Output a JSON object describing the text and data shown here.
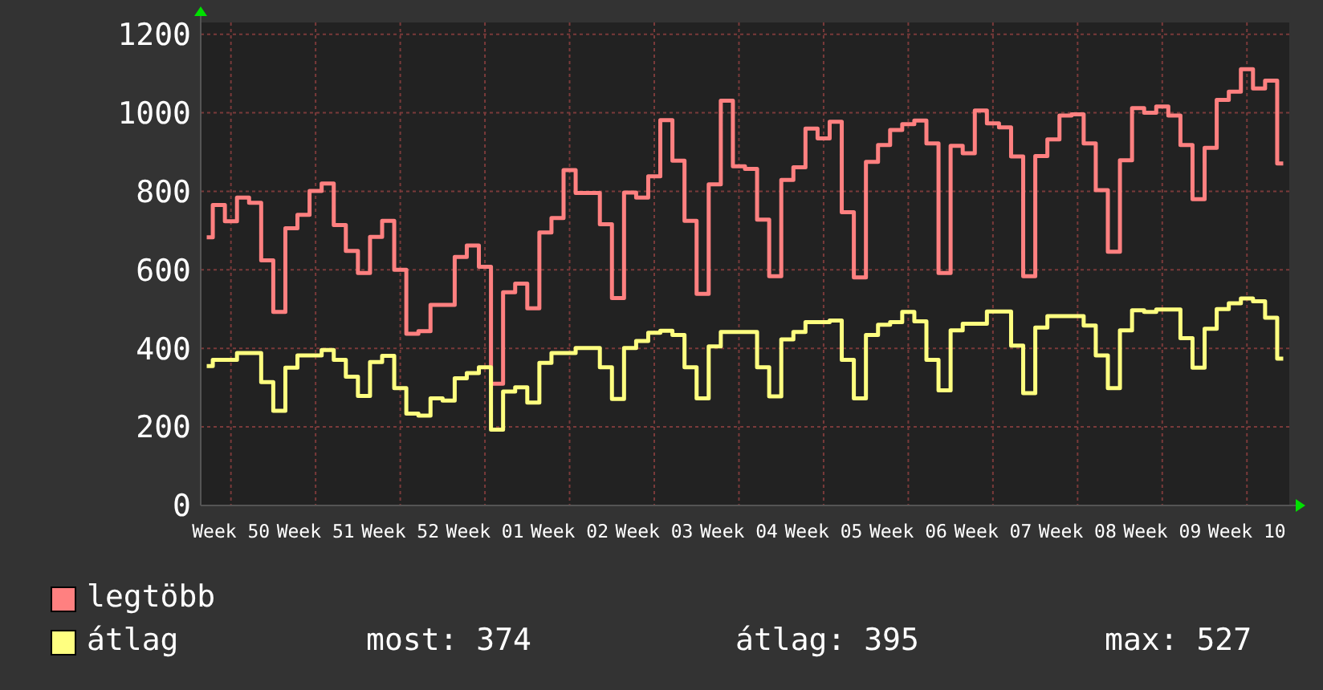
{
  "chart_data": {
    "type": "step",
    "ylim": [
      0,
      1230
    ],
    "categories": [
      null,
      null,
      "Week 50",
      null,
      null,
      null,
      null,
      null,
      null,
      "Week 51",
      null,
      null,
      null,
      null,
      null,
      null,
      "Week 52",
      null,
      null,
      null,
      null,
      null,
      null,
      "Week 01",
      null,
      null,
      null,
      null,
      null,
      null,
      "Week 02",
      null,
      null,
      null,
      null,
      null,
      null,
      "Week 03",
      null,
      null,
      null,
      null,
      null,
      null,
      "Week 04",
      null,
      null,
      null,
      null,
      null,
      null,
      "Week 05",
      null,
      null,
      null,
      null,
      null,
      null,
      "Week 06",
      null,
      null,
      null,
      null,
      null,
      null,
      "Week 07",
      null,
      null,
      null,
      null,
      null,
      null,
      "Week 08",
      null,
      null,
      null,
      null,
      null,
      null,
      "Week 09",
      null,
      null,
      null,
      null,
      null,
      null,
      "Week 10",
      null,
      null,
      null
    ],
    "yticks": [
      0,
      200,
      400,
      600,
      800,
      1000,
      1200
    ],
    "grid": true,
    "legend": "bottom",
    "line_style": "solid",
    "series": [
      {
        "name": "legtöbb",
        "color": "#ff8080",
        "values": [
          683,
          765,
          724,
          784,
          771,
          624,
          493,
          706,
          740,
          801,
          820,
          714,
          648,
          592,
          684,
          725,
          600,
          437,
          444,
          511,
          511,
          633,
          662,
          608,
          310,
          543,
          565,
          502,
          695,
          732,
          854,
          796,
          796,
          716,
          528,
          797,
          784,
          838,
          981,
          878,
          725,
          539,
          818,
          1031,
          864,
          857,
          728,
          584,
          829,
          861,
          960,
          935,
          977,
          747,
          581,
          875,
          918,
          956,
          971,
          980,
          922,
          592,
          916,
          897,
          1006,
          973,
          963,
          889,
          584,
          890,
          932,
          993,
          996,
          922,
          803,
          646,
          879,
          1012,
          1000,
          1016,
          993,
          918,
          780,
          911,
          1033,
          1054,
          1111,
          1062,
          1082,
          871
        ]
      },
      {
        "name": "átlag",
        "color": "#ffff80",
        "values": [
          355,
          371,
          371,
          388,
          388,
          314,
          241,
          351,
          382,
          382,
          396,
          371,
          328,
          279,
          365,
          381,
          299,
          234,
          229,
          273,
          267,
          324,
          337,
          352,
          193,
          290,
          301,
          262,
          363,
          388,
          388,
          401,
          401,
          352,
          271,
          401,
          419,
          440,
          445,
          434,
          352,
          273,
          405,
          442,
          442,
          442,
          352,
          278,
          423,
          442,
          467,
          467,
          471,
          371,
          273,
          434,
          460,
          467,
          493,
          469,
          371,
          293,
          446,
          463,
          463,
          494,
          494,
          407,
          286,
          453,
          482,
          482,
          482,
          458,
          382,
          299,
          446,
          497,
          493,
          499,
          499,
          426,
          351,
          450,
          500,
          515,
          527,
          520,
          478,
          374
        ]
      }
    ],
    "annotations": [
      "most: 374",
      "átlag: 395",
      "max: 527"
    ]
  }
}
